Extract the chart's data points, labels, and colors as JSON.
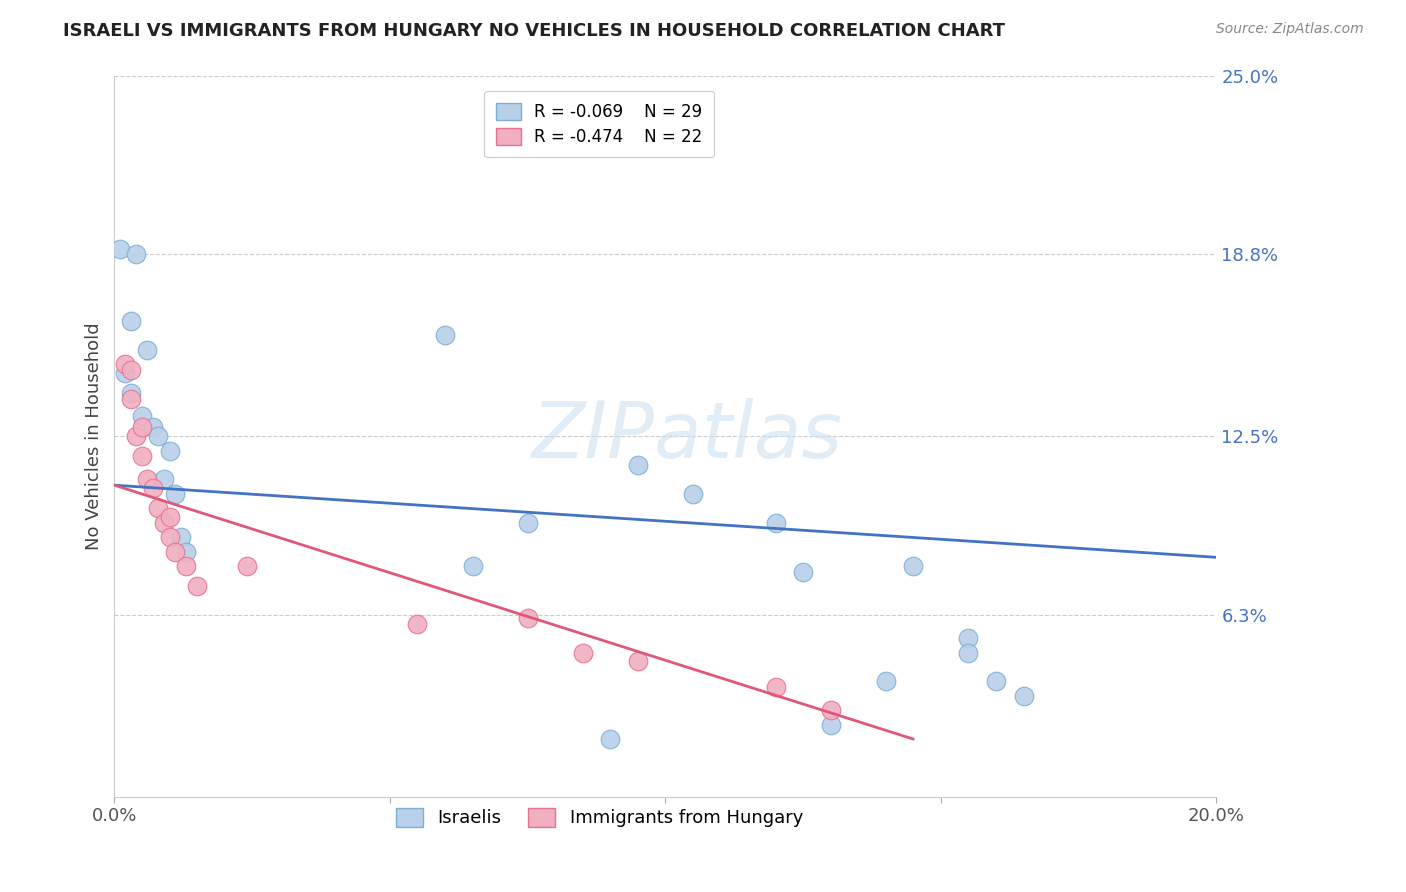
{
  "title": "ISRAELI VS IMMIGRANTS FROM HUNGARY NO VEHICLES IN HOUSEHOLD CORRELATION CHART",
  "source": "Source: ZipAtlas.com",
  "xlabel": "",
  "ylabel": "No Vehicles in Household",
  "xlim": [
    0.0,
    0.2
  ],
  "ylim": [
    0.0,
    0.25
  ],
  "x_ticks": [
    0.0,
    0.05,
    0.1,
    0.15,
    0.2
  ],
  "x_tick_labels": [
    "0.0%",
    "",
    "",
    "",
    "20.0%"
  ],
  "y_tick_labels_right": [
    "25.0%",
    "18.8%",
    "12.5%",
    "6.3%",
    ""
  ],
  "y_ticks_right": [
    0.25,
    0.188,
    0.125,
    0.063,
    0.0
  ],
  "grid_color": "#cccccc",
  "background_color": "#ffffff",
  "watermark": "ZIPatlas",
  "israelis": {
    "x": [
      0.001,
      0.004,
      0.003,
      0.006,
      0.002,
      0.003,
      0.005,
      0.007,
      0.008,
      0.01,
      0.009,
      0.011,
      0.012,
      0.013,
      0.06,
      0.095,
      0.075,
      0.105,
      0.065,
      0.12,
      0.145,
      0.155,
      0.155,
      0.14,
      0.16,
      0.125,
      0.09,
      0.165,
      0.13
    ],
    "y": [
      0.19,
      0.188,
      0.165,
      0.155,
      0.147,
      0.14,
      0.132,
      0.128,
      0.125,
      0.12,
      0.11,
      0.105,
      0.09,
      0.085,
      0.16,
      0.115,
      0.095,
      0.105,
      0.08,
      0.095,
      0.08,
      0.055,
      0.05,
      0.04,
      0.04,
      0.078,
      0.02,
      0.035,
      0.025
    ],
    "color": "#b8d0e8",
    "edge_color": "#7bafd4",
    "R": -0.069,
    "N": 29,
    "label": "Israelis",
    "trend_color": "#4472c4",
    "trend_x": [
      0.0,
      0.2
    ],
    "trend_y": [
      0.108,
      0.083
    ]
  },
  "hungary": {
    "x": [
      0.002,
      0.003,
      0.003,
      0.004,
      0.005,
      0.005,
      0.006,
      0.007,
      0.008,
      0.009,
      0.01,
      0.01,
      0.011,
      0.013,
      0.015,
      0.024,
      0.055,
      0.075,
      0.085,
      0.095,
      0.12,
      0.13
    ],
    "y": [
      0.15,
      0.148,
      0.138,
      0.125,
      0.128,
      0.118,
      0.11,
      0.107,
      0.1,
      0.095,
      0.097,
      0.09,
      0.085,
      0.08,
      0.073,
      0.08,
      0.06,
      0.062,
      0.05,
      0.047,
      0.038,
      0.03
    ],
    "color": "#f0b0c0",
    "edge_color": "#e87090",
    "R": -0.474,
    "N": 22,
    "label": "Immigrants from Hungary",
    "trend_color": "#e05878",
    "trend_x": [
      0.0,
      0.145
    ],
    "trend_y": [
      0.108,
      0.02
    ]
  }
}
